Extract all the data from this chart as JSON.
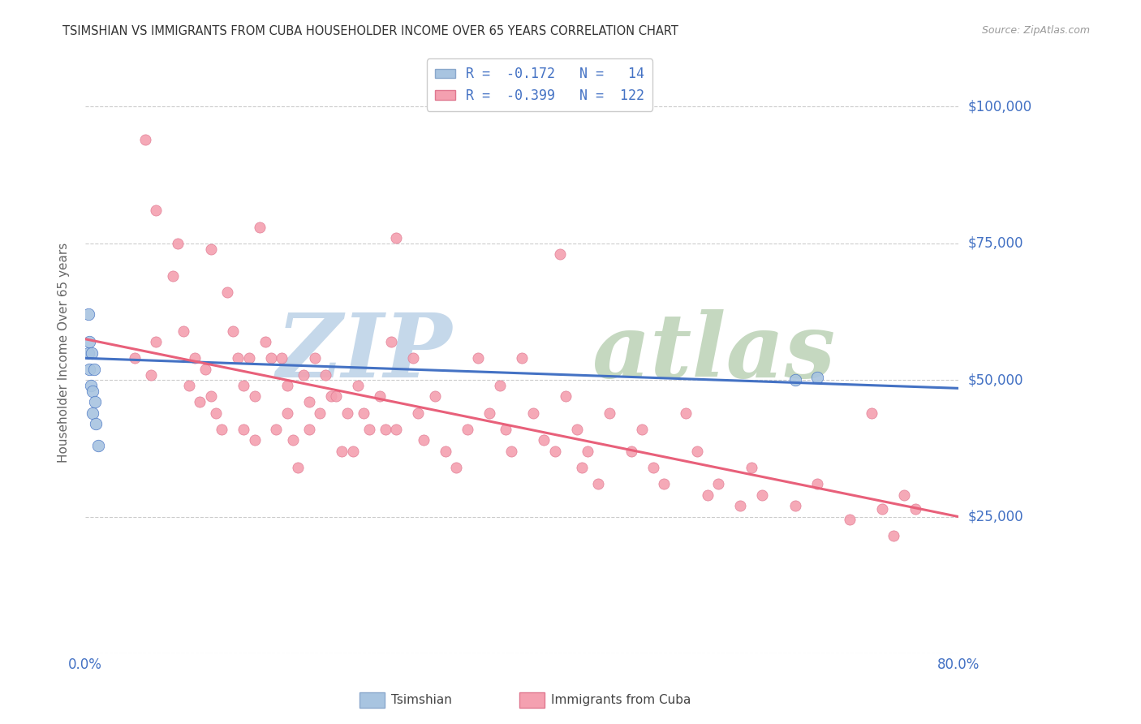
{
  "title": "TSIMSHIAN VS IMMIGRANTS FROM CUBA HOUSEHOLDER INCOME OVER 65 YEARS CORRELATION CHART",
  "source": "Source: ZipAtlas.com",
  "ylabel": "Householder Income Over 65 years",
  "xlim": [
    0.0,
    0.8
  ],
  "ylim": [
    0,
    110000
  ],
  "yticks": [
    0,
    25000,
    50000,
    75000,
    100000
  ],
  "ytick_labels": [
    "",
    "$25,000",
    "$50,000",
    "$75,000",
    "$100,000"
  ],
  "xticks": [
    0.0,
    0.1,
    0.2,
    0.3,
    0.4,
    0.5,
    0.6,
    0.7,
    0.8
  ],
  "color_tsimshian": "#a8c4e0",
  "color_cuba": "#f4a0b0",
  "color_tsimshian_line": "#4472c4",
  "color_cuba_line": "#e8607a",
  "color_labels": "#4472c4",
  "watermark_zip_color": "#c5d8ea",
  "watermark_atlas_color": "#c5d8c0",
  "tsimshian_x": [
    0.003,
    0.003,
    0.004,
    0.004,
    0.005,
    0.006,
    0.007,
    0.007,
    0.008,
    0.009,
    0.01,
    0.012,
    0.65,
    0.67
  ],
  "tsimshian_y": [
    55000,
    62000,
    52000,
    57000,
    49000,
    55000,
    48000,
    44000,
    52000,
    46000,
    42000,
    38000,
    50000,
    50500
  ],
  "cuba_x": [
    0.045,
    0.06,
    0.065,
    0.08,
    0.09,
    0.095,
    0.1,
    0.105,
    0.11,
    0.115,
    0.12,
    0.125,
    0.13,
    0.135,
    0.14,
    0.145,
    0.145,
    0.15,
    0.155,
    0.155,
    0.16,
    0.165,
    0.17,
    0.175,
    0.18,
    0.185,
    0.185,
    0.19,
    0.195,
    0.2,
    0.205,
    0.205,
    0.21,
    0.215,
    0.22,
    0.225,
    0.23,
    0.235,
    0.24,
    0.245,
    0.25,
    0.255,
    0.26,
    0.27,
    0.275,
    0.28,
    0.285,
    0.3,
    0.305,
    0.31,
    0.32,
    0.33,
    0.34,
    0.35,
    0.36,
    0.37,
    0.38,
    0.385,
    0.39,
    0.4,
    0.41,
    0.42,
    0.43,
    0.44,
    0.45,
    0.455,
    0.46,
    0.47,
    0.48,
    0.5,
    0.51,
    0.52,
    0.53,
    0.55,
    0.56,
    0.57,
    0.58,
    0.6,
    0.61,
    0.62,
    0.65,
    0.67,
    0.7,
    0.72,
    0.73,
    0.74,
    0.75,
    0.76
  ],
  "cuba_y": [
    54000,
    51000,
    57000,
    69000,
    59000,
    49000,
    54000,
    46000,
    52000,
    47000,
    44000,
    41000,
    66000,
    59000,
    54000,
    49000,
    41000,
    54000,
    47000,
    39000,
    78000,
    57000,
    54000,
    41000,
    54000,
    49000,
    44000,
    39000,
    34000,
    51000,
    46000,
    41000,
    54000,
    44000,
    51000,
    47000,
    47000,
    37000,
    44000,
    37000,
    49000,
    44000,
    41000,
    47000,
    41000,
    57000,
    41000,
    54000,
    44000,
    39000,
    47000,
    37000,
    34000,
    41000,
    54000,
    44000,
    49000,
    41000,
    37000,
    54000,
    44000,
    39000,
    37000,
    47000,
    41000,
    34000,
    37000,
    31000,
    44000,
    37000,
    41000,
    34000,
    31000,
    44000,
    37000,
    29000,
    31000,
    27000,
    34000,
    29000,
    27000,
    31000,
    24500,
    44000,
    26500,
    21500,
    29000,
    26500
  ],
  "cuba_outlier_x": [
    0.055,
    0.065,
    0.085,
    0.115,
    0.285,
    0.435
  ],
  "cuba_outlier_y": [
    94000,
    81000,
    75000,
    74000,
    76000,
    73000
  ],
  "tsimshian_line_x": [
    0.0,
    0.8
  ],
  "tsimshian_line_y": [
    54000,
    48500
  ],
  "cuba_line_x": [
    0.0,
    0.8
  ],
  "cuba_line_y": [
    57500,
    25000
  ]
}
